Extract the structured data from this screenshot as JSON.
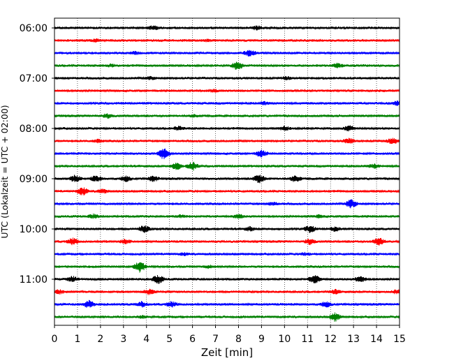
{
  "chart_data": {
    "type": "line",
    "title": "",
    "xlabel": "Zeit  [min]",
    "ylabel": "UTC (Lokalzeit = UTC + 02:00)",
    "xlim": [
      0,
      15
    ],
    "x_ticks": [
      "0",
      "1",
      "2",
      "3",
      "4",
      "5",
      "6",
      "7",
      "8",
      "9",
      "10",
      "11",
      "12",
      "13",
      "14",
      "15"
    ],
    "y_ticks": [
      "06:00",
      "07:00",
      "08:00",
      "09:00",
      "10:00",
      "11:00"
    ],
    "grid": "vertical dotted",
    "legend": "none",
    "trace_interval_minutes": 15,
    "trace_colors": [
      "#000000",
      "#ff0000",
      "#0000ff",
      "#008000"
    ],
    "series": [
      {
        "start": "06:00",
        "color": "#000000",
        "events": [
          [
            4.3,
            3
          ],
          [
            8.8,
            3
          ]
        ]
      },
      {
        "start": "06:15",
        "color": "#ff0000",
        "events": [
          [
            1.8,
            2
          ],
          [
            6.6,
            2
          ]
        ]
      },
      {
        "start": "06:30",
        "color": "#0000ff",
        "events": [
          [
            8.5,
            5
          ],
          [
            3.5,
            2
          ]
        ]
      },
      {
        "start": "06:45",
        "color": "#008000",
        "events": [
          [
            2.5,
            2
          ],
          [
            7.95,
            6
          ],
          [
            12.3,
            3
          ]
        ]
      },
      {
        "start": "07:00",
        "color": "#000000",
        "events": [
          [
            4.2,
            2
          ],
          [
            10.1,
            2
          ]
        ]
      },
      {
        "start": "07:15",
        "color": "#ff0000",
        "events": [
          [
            6.9,
            2
          ]
        ]
      },
      {
        "start": "07:30",
        "color": "#0000ff",
        "events": [
          [
            9.1,
            2
          ],
          [
            14.9,
            3
          ]
        ]
      },
      {
        "start": "07:45",
        "color": "#008000",
        "events": [
          [
            2.3,
            3
          ],
          [
            6.1,
            2
          ]
        ]
      },
      {
        "start": "08:00",
        "color": "#000000",
        "events": [
          [
            5.4,
            3
          ],
          [
            10.0,
            3
          ],
          [
            12.8,
            4
          ]
        ]
      },
      {
        "start": "08:15",
        "color": "#ff0000",
        "events": [
          [
            12.8,
            4
          ],
          [
            14.7,
            4
          ],
          [
            1.9,
            2
          ]
        ]
      },
      {
        "start": "08:30",
        "color": "#0000ff",
        "events": [
          [
            4.75,
            8
          ],
          [
            9.0,
            5
          ]
        ]
      },
      {
        "start": "08:45",
        "color": "#008000",
        "events": [
          [
            5.3,
            5
          ],
          [
            6.0,
            6
          ],
          [
            13.9,
            3
          ]
        ]
      },
      {
        "start": "09:00",
        "color": "#000000",
        "events": [
          [
            0.9,
            5
          ],
          [
            1.8,
            4
          ],
          [
            3.1,
            4
          ],
          [
            4.3,
            4
          ],
          [
            8.9,
            6
          ],
          [
            10.5,
            5
          ]
        ]
      },
      {
        "start": "09:15",
        "color": "#ff0000",
        "events": [
          [
            1.2,
            6
          ],
          [
            2.1,
            3
          ]
        ]
      },
      {
        "start": "09:30",
        "color": "#0000ff",
        "events": [
          [
            12.9,
            6
          ],
          [
            9.5,
            2
          ]
        ]
      },
      {
        "start": "09:45",
        "color": "#008000",
        "events": [
          [
            1.7,
            3
          ],
          [
            5.5,
            2
          ],
          [
            8.0,
            3
          ],
          [
            11.5,
            2
          ]
        ]
      },
      {
        "start": "10:00",
        "color": "#000000",
        "events": [
          [
            3.9,
            5
          ],
          [
            8.5,
            3
          ],
          [
            11.1,
            5
          ],
          [
            12.2,
            3
          ]
        ]
      },
      {
        "start": "10:15",
        "color": "#ff0000",
        "events": [
          [
            0.8,
            5
          ],
          [
            3.1,
            3
          ],
          [
            11.1,
            4
          ],
          [
            14.1,
            6
          ]
        ]
      },
      {
        "start": "10:30",
        "color": "#0000ff",
        "events": [
          [
            5.6,
            2
          ],
          [
            10.9,
            2
          ]
        ]
      },
      {
        "start": "10:45",
        "color": "#008000",
        "events": [
          [
            3.7,
            8
          ],
          [
            6.7,
            2
          ]
        ]
      },
      {
        "start": "11:00",
        "color": "#000000",
        "events": [
          [
            0.8,
            4
          ],
          [
            4.5,
            6
          ],
          [
            11.3,
            6
          ],
          [
            13.3,
            4
          ]
        ]
      },
      {
        "start": "11:15",
        "color": "#ff0000",
        "events": [
          [
            0.2,
            3
          ],
          [
            4.1,
            4
          ],
          [
            12.2,
            3
          ],
          [
            14.9,
            3
          ]
        ]
      },
      {
        "start": "11:30",
        "color": "#0000ff",
        "events": [
          [
            1.5,
            5
          ],
          [
            3.8,
            4
          ],
          [
            5.1,
            4
          ],
          [
            11.8,
            4
          ]
        ]
      },
      {
        "start": "11:45",
        "color": "#008000",
        "events": [
          [
            12.2,
            6
          ],
          [
            3.8,
            2
          ]
        ]
      }
    ]
  }
}
